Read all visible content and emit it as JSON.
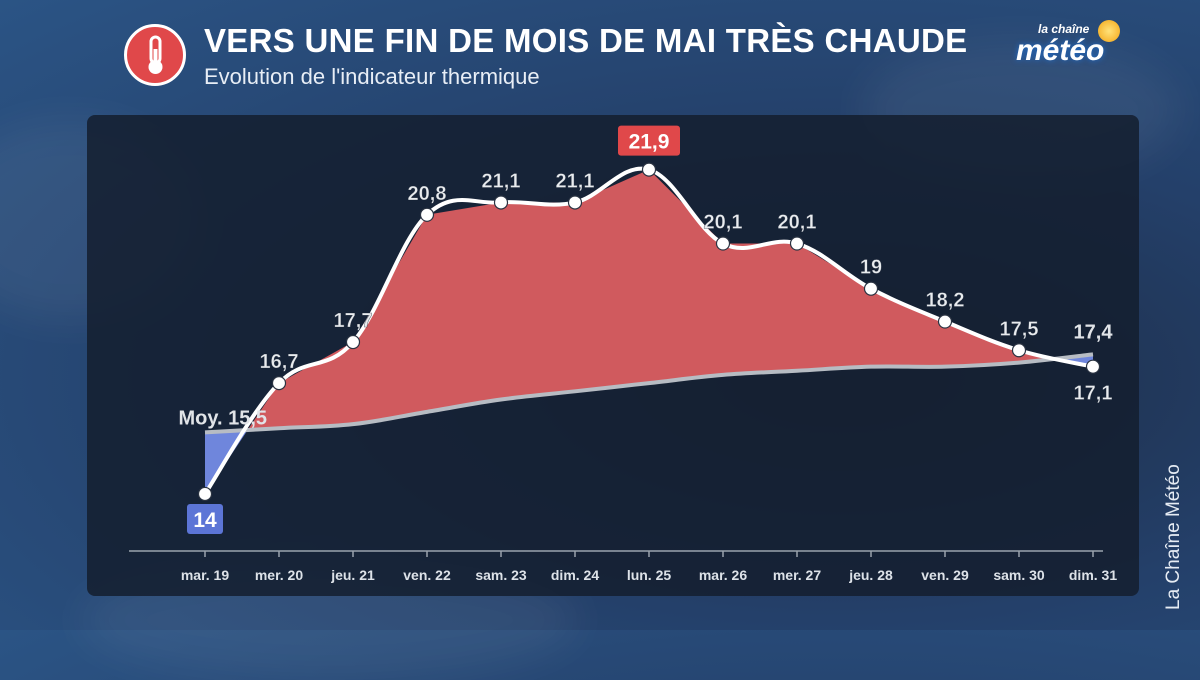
{
  "header": {
    "title": "VERS UNE FIN DE MOIS DE MAI TRÈS CHAUDE",
    "subtitle": "Evolution de l'indicateur thermique",
    "icon": "thermometer-icon"
  },
  "logo": {
    "top": "la chaîne",
    "main": "météo"
  },
  "credit": "La Chaîne Météo",
  "colors": {
    "above_normal_fill": "#d05a5e",
    "below_normal_fill": "#6f86dc",
    "observed_line": "#ffffff",
    "normal_line": "#b7bcc3",
    "max_label_bg": "#e0484a",
    "min_label_bg": "#5c75d6"
  },
  "chart_data": {
    "type": "area",
    "categories": [
      "mar. 19",
      "mer. 20",
      "jeu. 21",
      "ven. 22",
      "sam. 23",
      "dim. 24",
      "lun. 25",
      "mar. 26",
      "mer. 27",
      "jeu. 28",
      "ven. 29",
      "sam. 30",
      "dim. 31"
    ],
    "series": [
      {
        "values": [
          14,
          16.7,
          17.7,
          20.8,
          21.1,
          21.1,
          21.9,
          20.1,
          20.1,
          19,
          18.2,
          17.5,
          17.1
        ]
      },
      {
        "values": [
          15.5,
          15.6,
          15.7,
          16.0,
          16.3,
          16.5,
          16.7,
          16.9,
          17.0,
          17.1,
          17.1,
          17.2,
          17.4
        ]
      }
    ],
    "labels": [
      "14",
      "16,7",
      "17,7",
      "20,8",
      "21,1",
      "21,1",
      "21,9",
      "20,1",
      "20,1",
      "19",
      "18,2",
      "17,5",
      "17,1"
    ],
    "normal_start_label": "Moy. 15,5",
    "normal_end_label": "17,4",
    "max_index": 6,
    "min_index": 0,
    "ylim": [
      13,
      22.5
    ],
    "grid": false,
    "title": "",
    "xlabel": "",
    "ylabel": ""
  }
}
